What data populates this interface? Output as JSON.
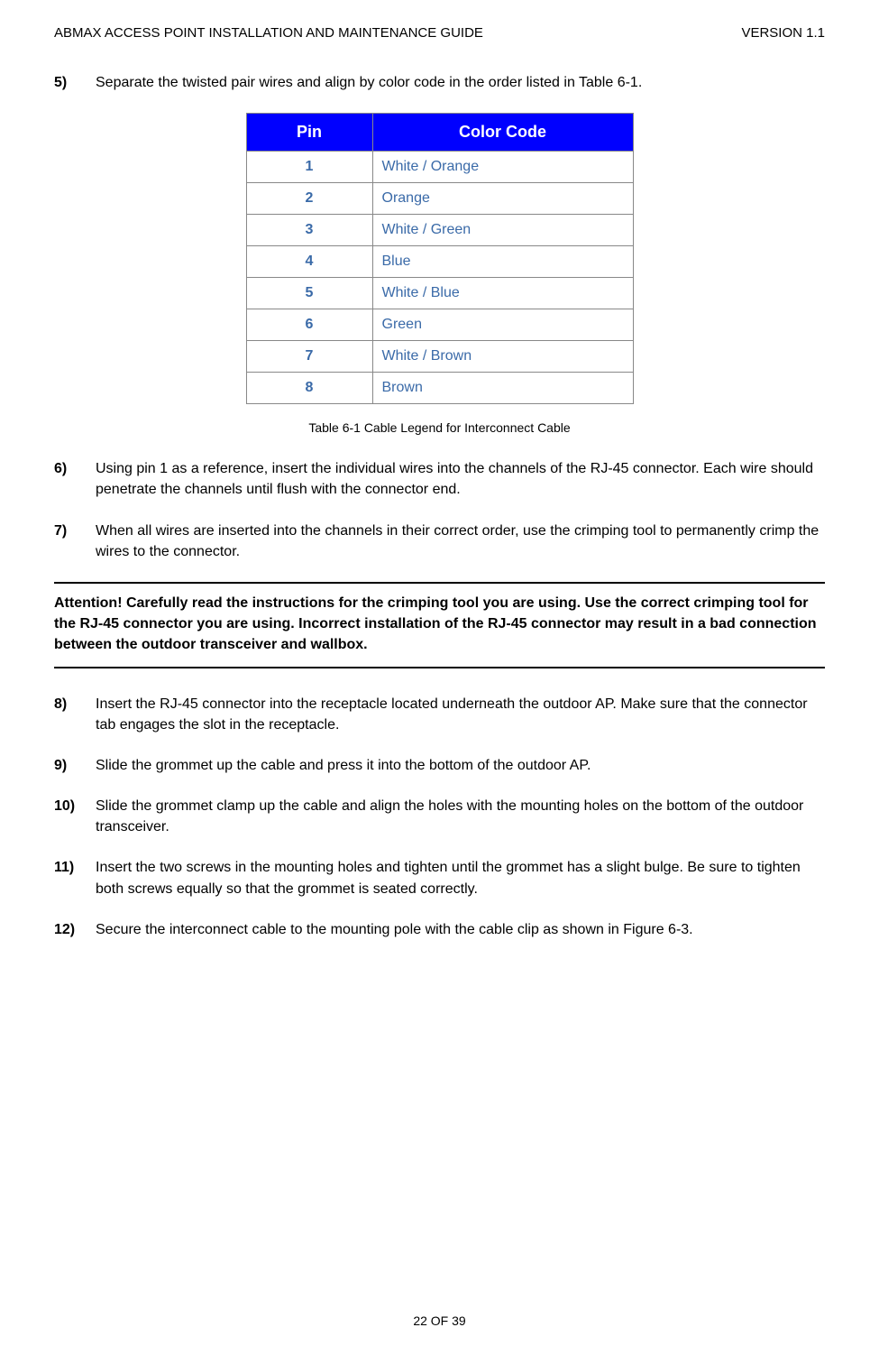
{
  "header": {
    "left": "ABMAX ACCESS POINT INSTALLATION AND MAINTENANCE GUIDE",
    "right": "VERSION 1.1"
  },
  "step5": {
    "num": "5)",
    "text": "Separate the twisted pair wires and align by color code in the order listed in Table 6-1."
  },
  "table": {
    "head_pin": "Pin",
    "head_code": "Color Code",
    "rows": [
      {
        "pin": "1",
        "code": "White / Orange"
      },
      {
        "pin": "2",
        "code": "Orange"
      },
      {
        "pin": "3",
        "code": "White / Green"
      },
      {
        "pin": "4",
        "code": "Blue"
      },
      {
        "pin": "5",
        "code": "White / Blue"
      },
      {
        "pin": "6",
        "code": "Green"
      },
      {
        "pin": "7",
        "code": "White / Brown"
      },
      {
        "pin": "8",
        "code": "Brown"
      }
    ],
    "caption": "Table 6-1 Cable Legend for Interconnect Cable"
  },
  "step6": {
    "num": "6)",
    "text": "Using pin 1 as a reference, insert the individual wires into the channels of the RJ-45 connector. Each wire should penetrate the channels until flush with the connector end."
  },
  "step7": {
    "num": "7)",
    "text": "When all wires are inserted into the channels in their correct order, use the crimping tool to permanently crimp the wires to the connector."
  },
  "attention": "Attention!  Carefully read the instructions for the crimping tool you are using.  Use the correct crimping tool for the RJ-45 connector you are using.  Incorrect installation of the RJ-45 connector may result in a bad connection between the outdoor transceiver and wallbox.",
  "step8": {
    "num": "8)",
    "text": "Insert the RJ-45 connector into the receptacle located underneath the outdoor AP.  Make sure that the connector tab engages the slot in the receptacle."
  },
  "step9": {
    "num": "9)",
    "text": "Slide the grommet up the cable and press it into the bottom of the outdoor AP."
  },
  "step10": {
    "num": "10)",
    "text": "Slide the grommet clamp up the cable and align the holes with the mounting holes on the bottom of the outdoor transceiver."
  },
  "step11": {
    "num": "11)",
    "text": "Insert the two screws in the mounting holes and tighten until the grommet has a slight bulge.  Be sure to tighten both screws equally so that the grommet is seated correctly."
  },
  "step12": {
    "num": "12)",
    "text": "Secure the interconnect cable to the mounting pole with the cable clip as shown in Figure 6-3."
  },
  "footer": "22 OF 39",
  "colors": {
    "table_header_bg": "#0000ff",
    "table_header_fg": "#ffffff",
    "table_cell_fg": "#3a6aa8",
    "border": "#888888"
  }
}
